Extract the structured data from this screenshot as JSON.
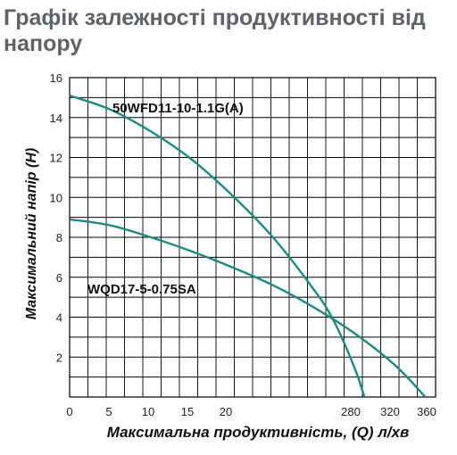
{
  "page_title": "Графік залежності продуктивності від напору",
  "chart_data": {
    "type": "line",
    "title": "Графік залежності продуктивності від напору",
    "xlabel": "Максимальна продуктивність, (Q) л/хв",
    "ylabel": "Максимальний напір (H)",
    "x_tick_labels": [
      "0",
      "5",
      "10",
      "15",
      "20",
      "280",
      "320",
      "360"
    ],
    "y_ticks": [
      2,
      4,
      6,
      8,
      10,
      12,
      14,
      16
    ],
    "ylim": [
      0,
      16
    ],
    "grid": true,
    "series": [
      {
        "name": "50WFD11-10-1.1G(A)",
        "color": "#1d8a80",
        "x": [
          0,
          40,
          80,
          120,
          160,
          200,
          240,
          260,
          280,
          290
        ],
        "y": [
          15.1,
          14.4,
          13.3,
          11.9,
          10.1,
          8.0,
          5.4,
          3.8,
          1.5,
          0
        ]
      },
      {
        "name": "WQD17-5-0.75SA",
        "color": "#1d8a80",
        "x": [
          0,
          40,
          80,
          120,
          160,
          200,
          240,
          280,
          320,
          350
        ],
        "y": [
          8.9,
          8.6,
          8.0,
          7.3,
          6.5,
          5.6,
          4.5,
          3.2,
          1.6,
          0
        ]
      }
    ]
  }
}
